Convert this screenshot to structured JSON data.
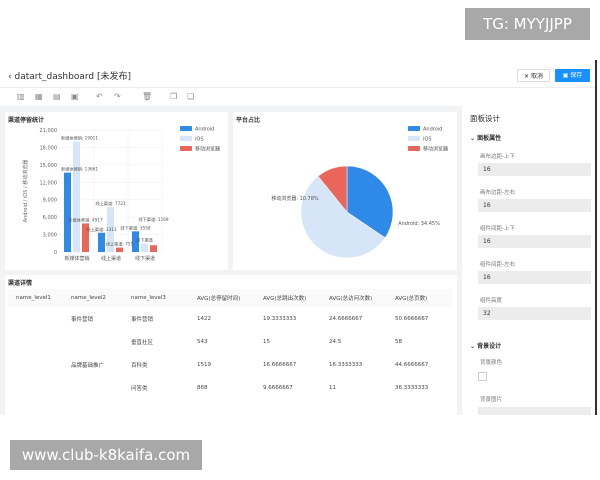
{
  "overlay": {
    "tg": "TG: MYYJJPP",
    "watermark": "www.club-k8kaifa.com"
  },
  "header": {
    "title": "datart_dashboard [未发布]",
    "cancel": "取消",
    "save": "保存"
  },
  "toolbar": {
    "icons": [
      "bar-chart-icon",
      "widget-icon",
      "report-icon",
      "media-icon",
      "undo-icon",
      "redo-icon",
      "delete-icon",
      "copy-icon",
      "paste-icon"
    ]
  },
  "colors": {
    "android": "#2f89e8",
    "ios": "#d6e6f8",
    "mobile": "#e8665a",
    "accent": "#1890ff"
  },
  "bar_panel": {
    "title": "渠道停留统计"
  },
  "pie_panel": {
    "title": "平台占比"
  },
  "chart_data": [
    {
      "type": "bar",
      "title": "渠道停留统计",
      "categories": [
        "新媒体营销",
        "线上渠道",
        "线下渠道"
      ],
      "ylabel": "Android / iOS / 移动浏览器",
      "ylim": [
        0,
        21000
      ],
      "yticks": [
        "0",
        "3,000",
        "6,000",
        "9,000",
        "12,000",
        "15,000",
        "18,000",
        "21,000"
      ],
      "grid": true,
      "legend": "top-right",
      "series": [
        {
          "name": "Android",
          "values": [
            13661,
            3313,
            3558
          ]
        },
        {
          "name": "iOS",
          "values": [
            19011,
            7723,
            1430
          ]
        },
        {
          "name": "移动浏览器",
          "values": [
            4917,
            755,
            1169
          ]
        }
      ],
      "data_labels": [
        "新媒体营销: 13661",
        "线上渠道: 3313",
        "线下渠道: 3558",
        "新媒体营销: 19011",
        "线上渠道: 7723",
        "线下渠道",
        "新媒体营销: 4917",
        "线上渠道: 755",
        "线下渠道: 1169"
      ]
    },
    {
      "type": "pie",
      "title": "平台占比",
      "legend": "top-right",
      "slices": [
        {
          "name": "Android",
          "value": 34.45,
          "label": "Android: 34.45%"
        },
        {
          "name": "iOS",
          "value": 54.77,
          "label": "iOS: 54.77%"
        },
        {
          "name": "移动浏览器",
          "value": 10.78,
          "label": "移动浏览器: 10.78%"
        }
      ]
    }
  ],
  "table": {
    "title": "渠道详情",
    "headers": [
      "name_level1",
      "name_level2",
      "name_level3",
      "AVG(总停留时间)",
      "AVG(总跳出次数)",
      "AVG(总访问次数)",
      "AVG(总页数)"
    ],
    "rows": [
      [
        "",
        "事件营销",
        "事件营销",
        "1422",
        "19.3333333",
        "24.6666667",
        "50.6666667"
      ],
      [
        "",
        "",
        "垂直社区",
        "543",
        "15",
        "24.5",
        "58"
      ],
      [
        "",
        "品牌基础推广",
        "百科类",
        "1519",
        "16.6666667",
        "16.3333333",
        "44.6666667"
      ],
      [
        "",
        "",
        "问答类",
        "868",
        "9.6666667",
        "11",
        "36.3333333"
      ]
    ]
  },
  "right_panel": {
    "title": "面板设计",
    "section1": "面板属性",
    "fields": [
      {
        "label": "画布边距-上下",
        "value": "16"
      },
      {
        "label": "画布边距-左右",
        "value": "16"
      },
      {
        "label": "组件间距-上下",
        "value": "16"
      },
      {
        "label": "组件间距-左右",
        "value": "16"
      },
      {
        "label": "组件高度",
        "value": "32"
      }
    ],
    "section2": "背景设计",
    "bg_color": "背景颜色",
    "bg_image": "背景图片"
  }
}
